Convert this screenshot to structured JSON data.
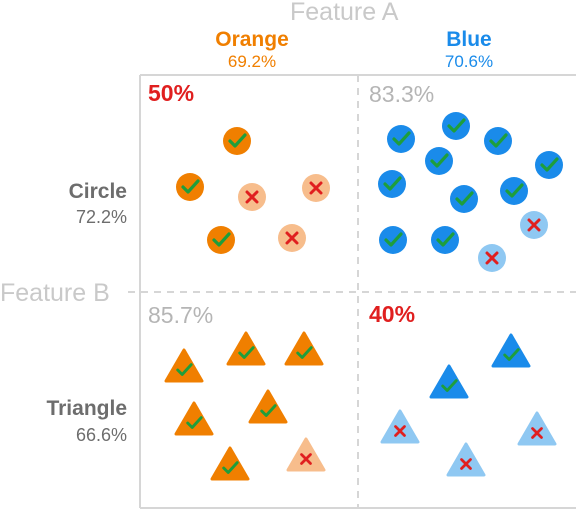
{
  "feature_a": {
    "label": "Feature A"
  },
  "feature_b": {
    "label": "Feature B"
  },
  "columns": [
    {
      "name": "Orange",
      "pct": "69.2%",
      "color": "#f07f00"
    },
    {
      "name": "Blue",
      "pct": "70.6%",
      "color": "#1a8bea"
    }
  ],
  "rows": [
    {
      "name": "Circle",
      "pct": "72.2%"
    },
    {
      "name": "Triangle",
      "pct": "66.6%"
    }
  ],
  "quadrants": {
    "orange_circle": {
      "pct": "50%",
      "highlight": true
    },
    "blue_circle": {
      "pct": "83.3%",
      "highlight": false
    },
    "orange_triangle": {
      "pct": "85.7%",
      "highlight": false
    },
    "blue_triangle": {
      "pct": "40%",
      "highlight": true
    }
  },
  "colors": {
    "orange": "#f07f00",
    "orange_light": "#f7bd8c",
    "blue": "#1a8bea",
    "blue_light": "#8fc8f2",
    "check": "#1e9e3c",
    "cross": "#e01f1f",
    "highlight_pct": "#e01f1f",
    "muted_pct": "#b5b5b5"
  },
  "icons": {
    "correct": "check-icon",
    "incorrect": "cross-icon"
  }
}
